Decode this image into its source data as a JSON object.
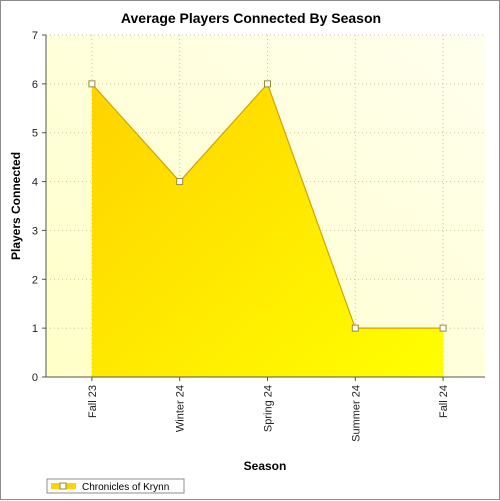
{
  "chart_data": {
    "type": "area",
    "title": "Average Players Connected By Season",
    "xlabel": "Season",
    "ylabel": "Players Connected",
    "categories": [
      "Fall 23",
      "Winter 24",
      "Spring 24",
      "Summer 24",
      "Fall 24"
    ],
    "series": [
      {
        "name": "Chronicles of Krynn",
        "values": [
          6,
          4,
          6,
          1,
          1
        ]
      }
    ],
    "ylim": [
      0,
      7
    ],
    "yticks": [
      0,
      1,
      2,
      3,
      4,
      5,
      6,
      7
    ],
    "grid": true,
    "legend_position": "bottom-left",
    "colors": {
      "fill_light": "#ffff00",
      "fill_dark": "#ffd200",
      "line": "#d4a300",
      "plot_bg_light": "#ffffee",
      "plot_bg_warm": "#ffffc8",
      "grid": "#c8c8a0"
    }
  }
}
